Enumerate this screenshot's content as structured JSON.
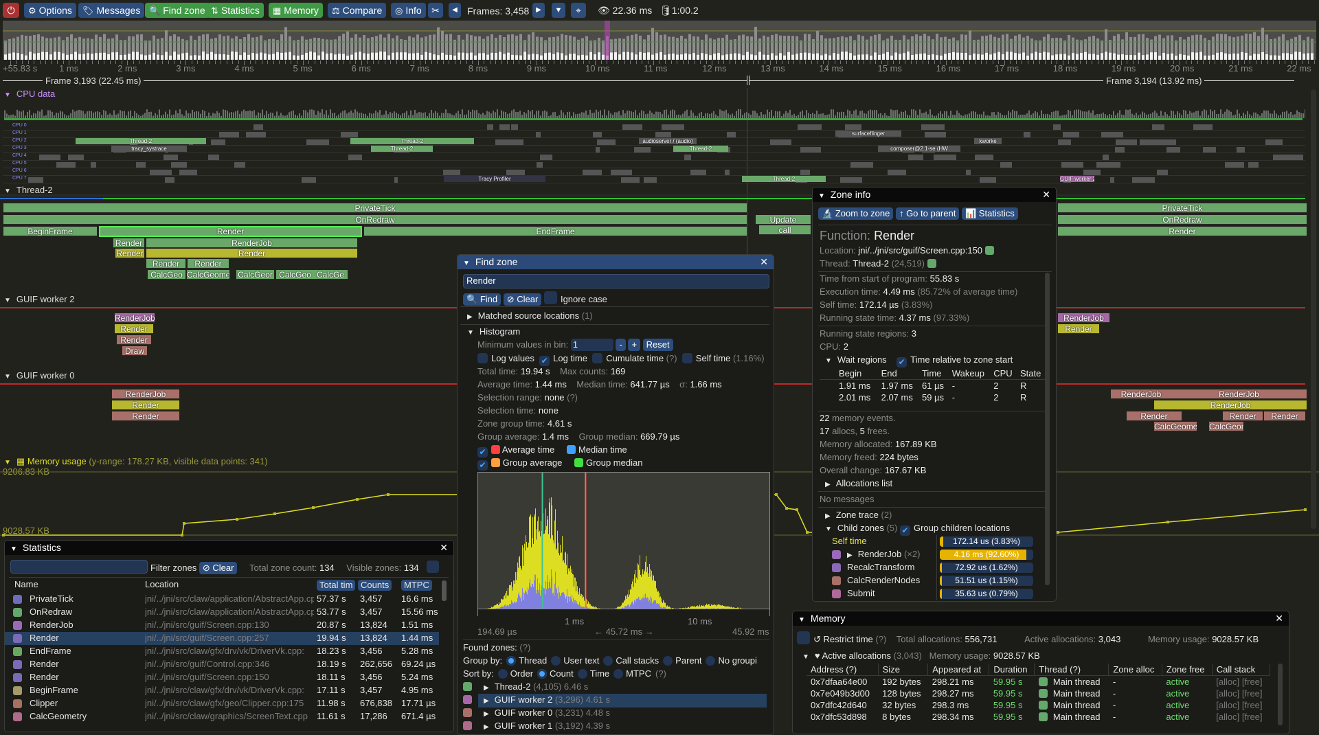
{
  "toolbar": {
    "power_icon": "power-icon",
    "options": "Options",
    "messages": "Messages",
    "find_zone": "Find zone",
    "statistics": "Statistics",
    "memory": "Memory",
    "compare": "Compare",
    "info": "Info",
    "frames": "Frames: 3,458",
    "view_time": "22.36 ms",
    "trace_time": "1:00.2"
  },
  "ruler": {
    "labels": [
      "+55.83 s",
      "1 ms",
      "2 ms",
      "3 ms",
      "4 ms",
      "5 ms",
      "6 ms",
      "7 ms",
      "8 ms",
      "9 ms",
      "10 ms",
      "11 ms",
      "12 ms",
      "13 ms",
      "14 ms",
      "15 ms",
      "16 ms",
      "17 ms",
      "18 ms",
      "19 ms",
      "20 ms",
      "21 ms",
      "22 ms"
    ],
    "frame_a": "Frame 3,193 (22.45 ms)",
    "frame_b": "Frame 3,194 (13.92 ms)"
  },
  "timeline": {
    "cpu_header": "CPU data",
    "cpus": [
      "CPU 0",
      "CPU 1",
      "CPU 2",
      "CPU 3",
      "CPU 4",
      "CPU 5",
      "CPU 6",
      "CPU 7"
    ],
    "cpu_labels": [
      "Thread-2",
      "Thread-2",
      "Thread-2",
      "tracy_systrace",
      "Tracy Profiler",
      "Thread-2",
      "Thread-2",
      "GUIF worker 2",
      "audioserver / (audio)",
      "composer@2.1-se (HW",
      "surfaceflinger",
      "kworke"
    ],
    "thread2_header": "Thread-2",
    "worker2_header": "GUIF worker 2",
    "worker0_header": "GUIF worker 0",
    "memory_header": "Memory usage",
    "memory_header_info": "(y-range: 178.27 KB, visible data points: 341)",
    "memory_max": "9206.83 KB",
    "memory_min": "9028.57 KB",
    "zones": [
      "PrivateTick",
      "OnRedraw",
      "BeginFrame",
      "Render",
      "EndFrame",
      "RenderJob",
      "Render",
      "Render",
      "Render",
      "Render",
      "Render",
      "CalcGeo",
      "CalcGeome",
      "CalcGeor",
      "CalcGeo",
      "CalcGe",
      "Update",
      "call",
      "PrivateTick",
      "OnRedraw",
      "Render",
      "RenderJob",
      "Render",
      "Render",
      "Draw",
      "RenderJob",
      "Render",
      "Render",
      "RenderJob",
      "Render",
      "Render",
      "CalcGeome",
      "RenderJob",
      "Render",
      "Render",
      "CalcGeomet",
      "Render",
      "CalcGeo"
    ]
  },
  "statistics": {
    "title": "Statistics",
    "filter_placeholder": "",
    "filter_label": "Filter zones",
    "clear": "Clear",
    "total_label": "Total zone count:",
    "total": "134",
    "visible_label": "Visible zones:",
    "visible": "134",
    "columns": [
      "Name",
      "Location",
      "Total tim",
      "Counts",
      "MTPC"
    ],
    "rows": [
      {
        "name": "PrivateTick",
        "location": "jni/../jni/src/claw/application/AbstractApp.cpp",
        "total": "57.37 s",
        "counts": "3,457",
        "mtpc": "16.6 ms",
        "color": "#6d6dba"
      },
      {
        "name": "OnRedraw",
        "location": "jni/../jni/src/claw/application/AbstractApp.cpp",
        "total": "53.77 s",
        "counts": "3,457",
        "mtpc": "15.56 ms",
        "color": "#64a86c"
      },
      {
        "name": "RenderJob",
        "location": "jni/../jni/src/guif/Screen.cpp:130",
        "total": "20.87 s",
        "counts": "13,824",
        "mtpc": "1.51 ms",
        "color": "#9a6ab8"
      },
      {
        "name": "Render",
        "location": "jni/../jni/src/guif/Screen.cpp:257",
        "total": "19.94 s",
        "counts": "13,824",
        "mtpc": "1.44 ms",
        "color": "#7a6ab8"
      },
      {
        "name": "EndFrame",
        "location": "jni/../jni/src/claw/gfx/drv/vk/DriverVk.cpp:",
        "total": "18.23 s",
        "counts": "3,456",
        "mtpc": "5.28 ms",
        "color": "#6aa860"
      },
      {
        "name": "Render",
        "location": "jni/../jni/src/guif/Control.cpp:346",
        "total": "18.19 s",
        "counts": "262,656",
        "mtpc": "69.24 µs",
        "color": "#7a6ab8"
      },
      {
        "name": "Render",
        "location": "jni/../jni/src/guif/Screen.cpp:150",
        "total": "18.11 s",
        "counts": "3,456",
        "mtpc": "5.24 ms",
        "color": "#7a6ab8"
      },
      {
        "name": "BeginFrame",
        "location": "jni/../jni/src/claw/gfx/drv/vk/DriverVk.cpp:",
        "total": "17.11 s",
        "counts": "3,457",
        "mtpc": "4.95 ms",
        "color": "#a89a68"
      },
      {
        "name": "Clipper",
        "location": "jni/../jni/src/claw/gfx/geo/Clipper.cpp:175",
        "total": "11.98 s",
        "counts": "676,838",
        "mtpc": "17.71 µs",
        "color": "#a87060"
      },
      {
        "name": "CalcGeometry",
        "location": "jni/../jni/src/claw/graphics/ScreenText.cpp",
        "total": "11.61 s",
        "counts": "17,286",
        "mtpc": "671.4 µs",
        "color": "#b06a8a"
      }
    ]
  },
  "find_zone": {
    "title": "Find zone",
    "query": "Render",
    "find": "Find",
    "clear": "Clear",
    "ignore_case": "Ignore case",
    "matched": "Matched source locations",
    "matched_count": "(1)",
    "histogram": "Histogram",
    "min_values_label": "Minimum values in bin:",
    "min_values": "1",
    "minus": "-",
    "plus": "+",
    "reset": "Reset",
    "log_values": "Log values",
    "log_time": "Log time",
    "cumulate_time": "Cumulate time",
    "help": "(?)",
    "self_time": "Self time",
    "self_time_pct": "(1.16%)",
    "total_time_label": "Total time:",
    "total_time": "19.94 s",
    "max_counts_label": "Max counts:",
    "max_counts": "169",
    "avg_label": "Average time:",
    "avg": "1.44 ms",
    "median_label": "Median time:",
    "median": "641.77 µs",
    "sigma_label": "σ:",
    "sigma": "1.66 ms",
    "sel_range_label": "Selection range:",
    "sel_range": "none",
    "sel_time_label": "Selection time:",
    "sel_time": "none",
    "group_time_label": "Zone group time:",
    "group_time": "4.61 s",
    "group_avg_label": "Group average:",
    "group_avg": "1.4 ms",
    "group_median_label": "Group median:",
    "group_median": "669.79 µs",
    "legend": {
      "average": "Average time",
      "median": "Median time",
      "group_average": "Group average",
      "group_median": "Group median"
    },
    "colors": {
      "average": "#ff4040",
      "median": "#40a0ff",
      "group_average": "#ffa040",
      "group_median": "#40e040",
      "bars": "#dddd22",
      "group_bars": "#8080e0"
    },
    "axis": {
      "tick_1": "1 ms",
      "tick_10": "10 ms",
      "min": "194.69 µs",
      "range": "← 45.72 ms →",
      "max": "45.92 ms"
    },
    "found_zones": "Found zones:",
    "group_by_label": "Group by:",
    "group_by": [
      "Thread",
      "User text",
      "Call stacks",
      "Parent",
      "No groupi"
    ],
    "sort_by_label": "Sort by:",
    "sort_by": [
      "Order",
      "Count",
      "Time",
      "MTPC"
    ],
    "groups": [
      {
        "name": "Thread-2",
        "info": "(4,105) 6.46 s",
        "color": "#64a86c"
      },
      {
        "name": "GUIF worker 2",
        "info": "(3,296) 4.61 s",
        "color": "#a868a8"
      },
      {
        "name": "GUIF worker 0",
        "info": "(3,231) 4.48 s",
        "color": "#a87068"
      },
      {
        "name": "GUIF worker 1",
        "info": "(3,192) 4.39 s",
        "color": "#b06a8a"
      }
    ]
  },
  "zone_info": {
    "title": "Zone info",
    "zoom": "Zoom to zone",
    "parent": "Go to parent",
    "stats": "Statistics",
    "function_label": "Function:",
    "function": "Render",
    "location_label": "Location:",
    "location": "jni/../jni/src/guif/Screen.cpp:150",
    "thread_label": "Thread:",
    "thread": "Thread-2",
    "thread_id": "(24,519)",
    "tfs_label": "Time from start of program:",
    "tfs": "55.83 s",
    "exec_label": "Execution time:",
    "exec": "4.49 ms",
    "exec_pct": "(85.72% of average time)",
    "self_label": "Self time:",
    "self": "172.14 µs",
    "self_pct": "(3.83%)",
    "run_label": "Running state time:",
    "run": "4.37 ms",
    "run_pct": "(97.33%)",
    "regions_label": "Running state regions:",
    "regions": "3",
    "cpu_label": "CPU:",
    "cpu": "2",
    "wait_regions": "Wait regions",
    "time_relative": "Time relative to zone start",
    "wait_cols": [
      "Begin",
      "End",
      "Time",
      "Wakeup",
      "CPU",
      "State"
    ],
    "wait_rows": [
      [
        "1.91 ms",
        "1.97 ms",
        "61 µs",
        "-",
        "2",
        "R"
      ],
      [
        "2.01 ms",
        "2.07 ms",
        "59 µs",
        "-",
        "2",
        "R"
      ]
    ],
    "mem_events": "22",
    "mem_events_label": "memory events.",
    "allocs": "17",
    "allocs_label": "allocs,",
    "frees": "5",
    "frees_label": "frees.",
    "allocated_label": "Memory allocated:",
    "allocated": "167.89 KB",
    "freed_label": "Memory freed:",
    "freed": "224 bytes",
    "overall_label": "Overall change:",
    "overall": "167.67 KB",
    "alloc_list": "Allocations list",
    "no_messages": "No messages",
    "zone_trace": "Zone trace",
    "zone_trace_count": "(2)",
    "child_zones": "Child zones",
    "child_count": "(5)",
    "group_children": "Group children locations",
    "children": [
      {
        "name": "Self time",
        "value": "172.14 us (3.83%)",
        "pct": 3.83,
        "color": ""
      },
      {
        "name": "RenderJob",
        "extra": "(×2)",
        "value": "4.16 ms (92.60%)",
        "pct": 92.6,
        "color": "#9a6ab8"
      },
      {
        "name": "RecalcTransform",
        "value": "72.92 us (1.62%)",
        "pct": 1.62,
        "color": "#8a6ab8"
      },
      {
        "name": "CalcRenderNodes",
        "value": "51.51 us (1.15%)",
        "pct": 1.15,
        "color": "#a87068"
      },
      {
        "name": "Submit",
        "value": "35.63 us (0.79%)",
        "pct": 0.79,
        "color": "#b06a9a"
      }
    ]
  },
  "memory": {
    "title": "Memory",
    "restrict": "Restrict time",
    "help": "(?)",
    "total_label": "Total allocations:",
    "total": "556,731",
    "active_label": "Active allocations:",
    "active": "3,043",
    "usage_label": "Memory usage:",
    "usage": "9028.57 KB",
    "active_allocs": "Active allocations",
    "active_count": "(3,043)",
    "columns": [
      "Address (?)",
      "Size",
      "Appeared at",
      "Duration",
      "Thread (?)",
      "Zone alloc",
      "Zone free",
      "Call stack"
    ],
    "rows": [
      [
        "0x7dfaa64e00",
        "192 bytes",
        "298.21 ms",
        "59.95 s",
        "Main thread",
        "-",
        "active",
        "[alloc]",
        "[free]"
      ],
      [
        "0x7e049b3d00",
        "128 bytes",
        "298.27 ms",
        "59.95 s",
        "Main thread",
        "-",
        "active",
        "[alloc]",
        "[free]"
      ],
      [
        "0x7dfc42d640",
        "32 bytes",
        "298.3 ms",
        "59.95 s",
        "Main thread",
        "-",
        "active",
        "[alloc]",
        "[free]"
      ],
      [
        "0x7dfc53d898",
        "8 bytes",
        "298.34 ms",
        "59.95 s",
        "Main thread",
        "-",
        "active",
        "[alloc]",
        "[free]"
      ]
    ]
  }
}
